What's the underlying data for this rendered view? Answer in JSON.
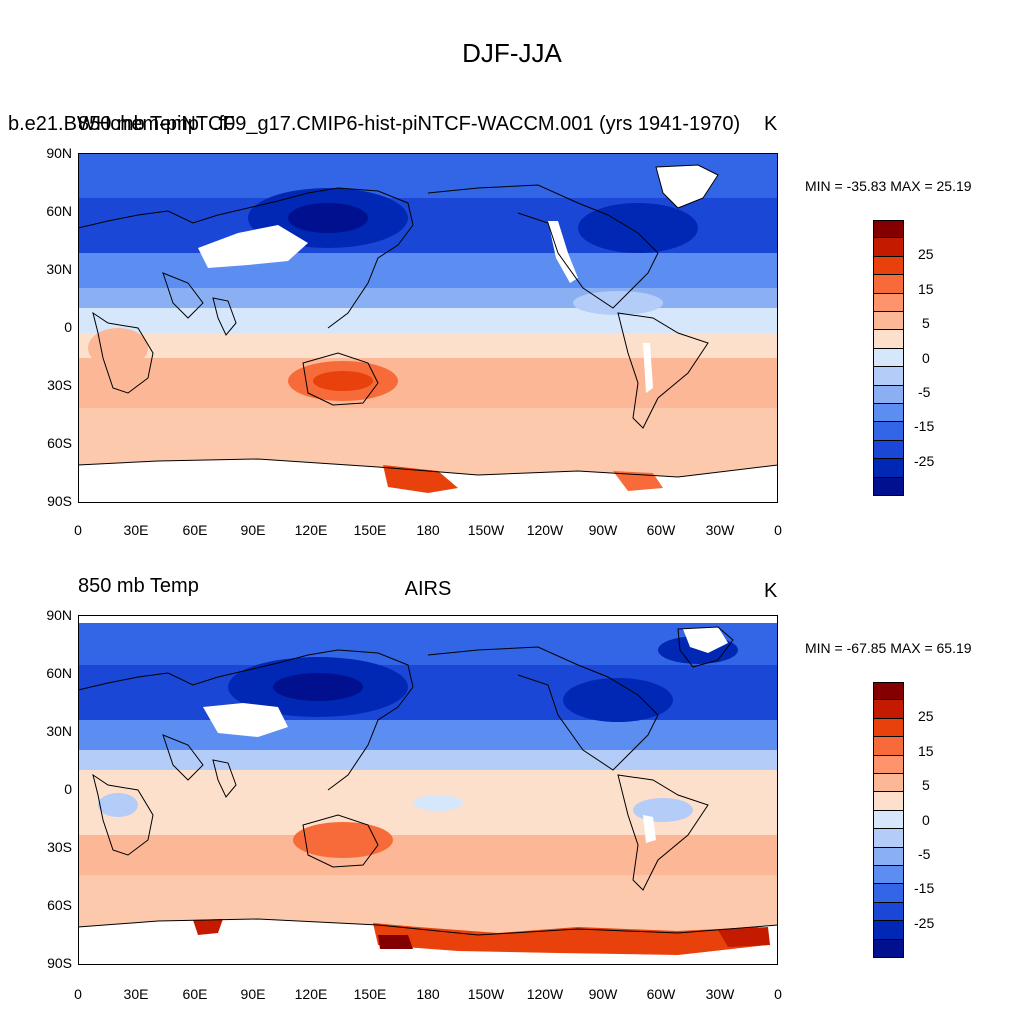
{
  "main_title": "DJF-JJA",
  "panels": [
    {
      "left_title": "850 mb Temp",
      "center_title": "b.e21.BWHIST.f09_g17.CMIP6-hist-piNTCF-WACCM.001 (yrs 1941-1970)",
      "center_overlap": "b.e21.BWHchem-piNTCF",
      "units": "K",
      "min_label": "MIN = -35.83",
      "max_label": "MAX =  25.19"
    },
    {
      "left_title": "850 mb Temp",
      "center_title": "AIRS",
      "units": "K",
      "min_label": "MIN = -67.85",
      "max_label": "MAX =  65.19"
    }
  ],
  "axes": {
    "y_ticks": [
      "90N",
      "60N",
      "30N",
      "0",
      "30S",
      "60S",
      "90S"
    ],
    "x_ticks": [
      "0",
      "30E",
      "60E",
      "90E",
      "120E",
      "150E",
      "180",
      "150W",
      "120W",
      "90W",
      "60W",
      "30W",
      "0"
    ]
  },
  "colorbar": {
    "labels": [
      "25",
      "15",
      "5",
      "0",
      "-5",
      "-15",
      "-25"
    ],
    "colors": [
      "#840000",
      "#c41a00",
      "#e8410c",
      "#f76b3a",
      "#fd946b",
      "#fcb796",
      "#fde0cc",
      "#d6e6fb",
      "#b3ccf8",
      "#8ab0f3",
      "#5b8ef0",
      "#3366e6",
      "#1a47d6",
      "#0028b4",
      "#00108f"
    ]
  }
}
